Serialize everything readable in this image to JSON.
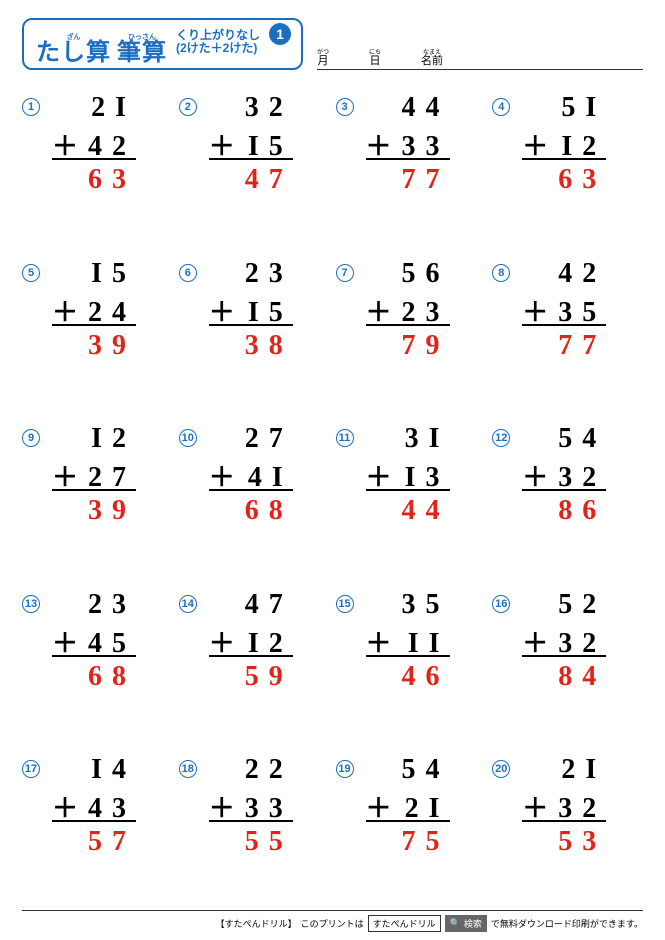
{
  "title": {
    "ruby1_rt": "ざん",
    "ruby1_rb": "たし算",
    "ruby2_rt": "ひっさん",
    "ruby2_rb": "筆算",
    "sub_line1": "くり上がりなし",
    "sub_line2": "(2けた＋2けた)",
    "badge": "1",
    "border_color": "#1b6ec2",
    "text_color": "#1b6ec2"
  },
  "date_name": {
    "month_rt": "がつ",
    "month_rb": "月",
    "day_rt": "にち",
    "day_rb": "日",
    "name_rt": "なまえ",
    "name_rb": "名前"
  },
  "style": {
    "number_color": "#000000",
    "answer_color": "#e2231a",
    "circle_color": "#1b6ec2",
    "font_size_digits": 28,
    "letter_spacing": 10,
    "rule_color": "#000000",
    "background": "#ffffff"
  },
  "problems": [
    {
      "n": "1",
      "a": "21",
      "b": "42",
      "ans": "63"
    },
    {
      "n": "2",
      "a": "32",
      "b": "15",
      "ans": "47"
    },
    {
      "n": "3",
      "a": "44",
      "b": "33",
      "ans": "77"
    },
    {
      "n": "4",
      "a": "51",
      "b": "12",
      "ans": "63"
    },
    {
      "n": "5",
      "a": "15",
      "b": "24",
      "ans": "39"
    },
    {
      "n": "6",
      "a": "23",
      "b": "15",
      "ans": "38"
    },
    {
      "n": "7",
      "a": "56",
      "b": "23",
      "ans": "79"
    },
    {
      "n": "8",
      "a": "42",
      "b": "35",
      "ans": "77"
    },
    {
      "n": "9",
      "a": "12",
      "b": "27",
      "ans": "39"
    },
    {
      "n": "10",
      "a": "27",
      "b": "41",
      "ans": "68"
    },
    {
      "n": "11",
      "a": "31",
      "b": "13",
      "ans": "44"
    },
    {
      "n": "12",
      "a": "54",
      "b": "32",
      "ans": "86"
    },
    {
      "n": "13",
      "a": "23",
      "b": "45",
      "ans": "68"
    },
    {
      "n": "14",
      "a": "47",
      "b": "12",
      "ans": "59"
    },
    {
      "n": "15",
      "a": "35",
      "b": "11",
      "ans": "46"
    },
    {
      "n": "16",
      "a": "52",
      "b": "32",
      "ans": "84"
    },
    {
      "n": "17",
      "a": "14",
      "b": "43",
      "ans": "57"
    },
    {
      "n": "18",
      "a": "22",
      "b": "33",
      "ans": "55"
    },
    {
      "n": "19",
      "a": "54",
      "b": "21",
      "ans": "75"
    },
    {
      "n": "20",
      "a": "21",
      "b": "32",
      "ans": "53"
    }
  ],
  "operator": "＋",
  "footer": {
    "brand": "【すたぺんドリル】",
    "text1": "このプリントは",
    "box": "すたぺんドリル",
    "search_icon": "🔍",
    "search_label": "検索",
    "text2": "で無料ダウンロード印刷ができます。"
  }
}
